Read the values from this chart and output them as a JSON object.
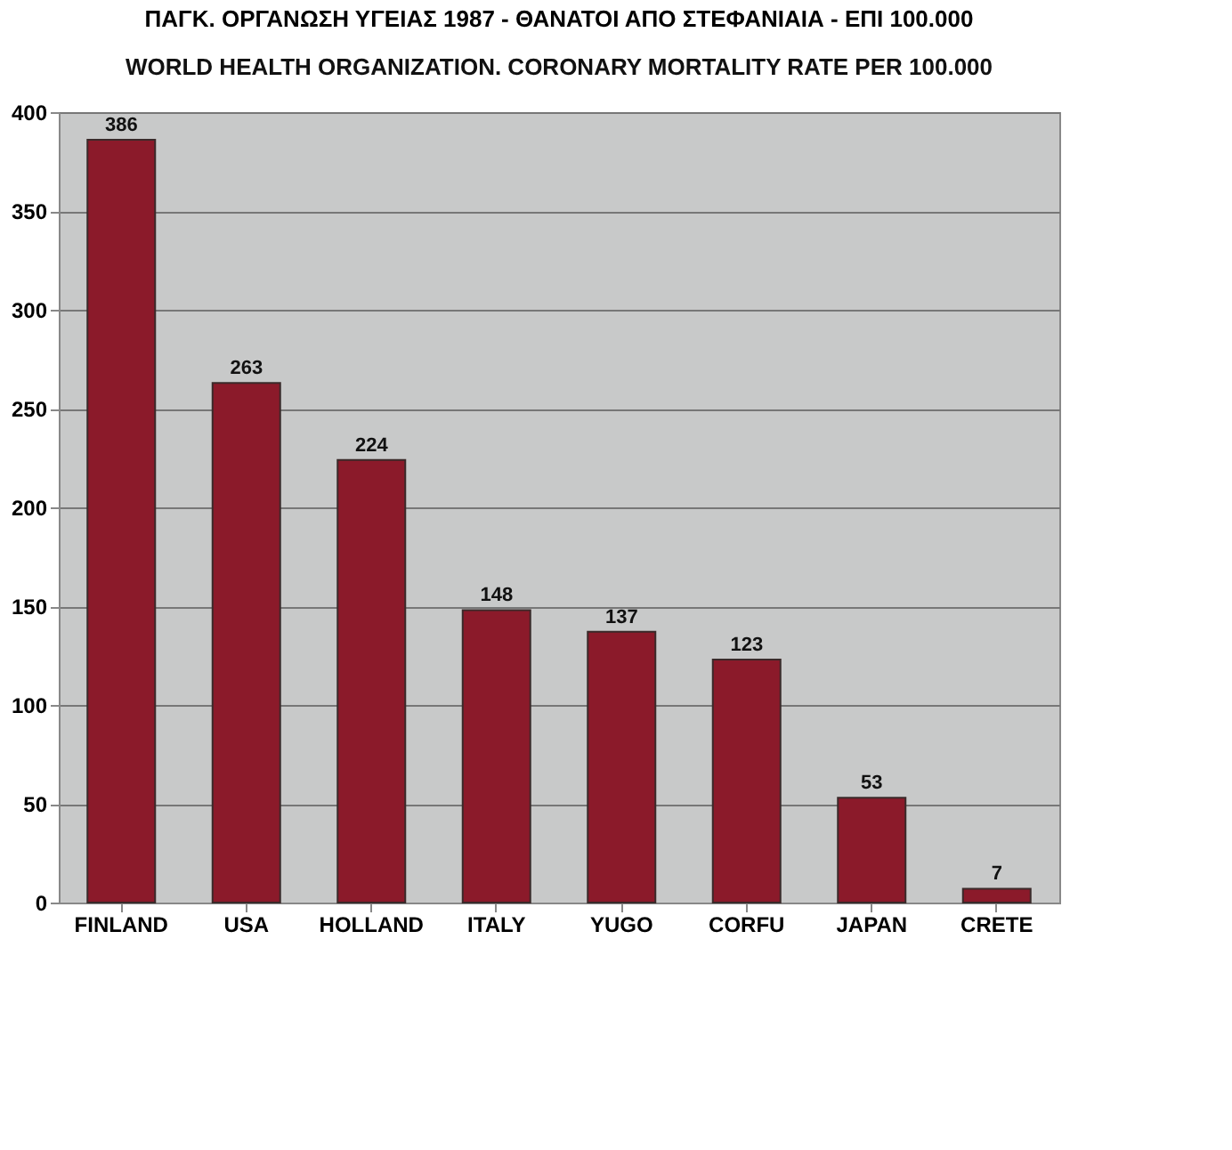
{
  "chart_data": {
    "type": "bar",
    "title": "ΠΑΓΚ. ΟΡΓΑΝΩΣΗ ΥΓΕΙΑΣ 1987 - ΘΑΝΑΤΟΙ ΑΠΟ ΣΤΕΦΑΝΙΑΙΑ - ΕΠΙ 100.000",
    "subtitle": "WORLD HEALTH ORGANIZATION. CORONARY MORTALITY RATE PER 100.000",
    "categories": [
      "FINLAND",
      "USA",
      "HOLLAND",
      "ITALY",
      "YUGO",
      "CORFU",
      "JAPAN",
      "CRETE"
    ],
    "values": [
      386,
      263,
      224,
      148,
      137,
      123,
      53,
      7
    ],
    "color": "#8b1a2a",
    "ylim": [
      0,
      400
    ],
    "yticks": [
      0,
      50,
      100,
      150,
      200,
      250,
      300,
      350,
      400
    ],
    "grid": "y",
    "data_labels": true
  }
}
